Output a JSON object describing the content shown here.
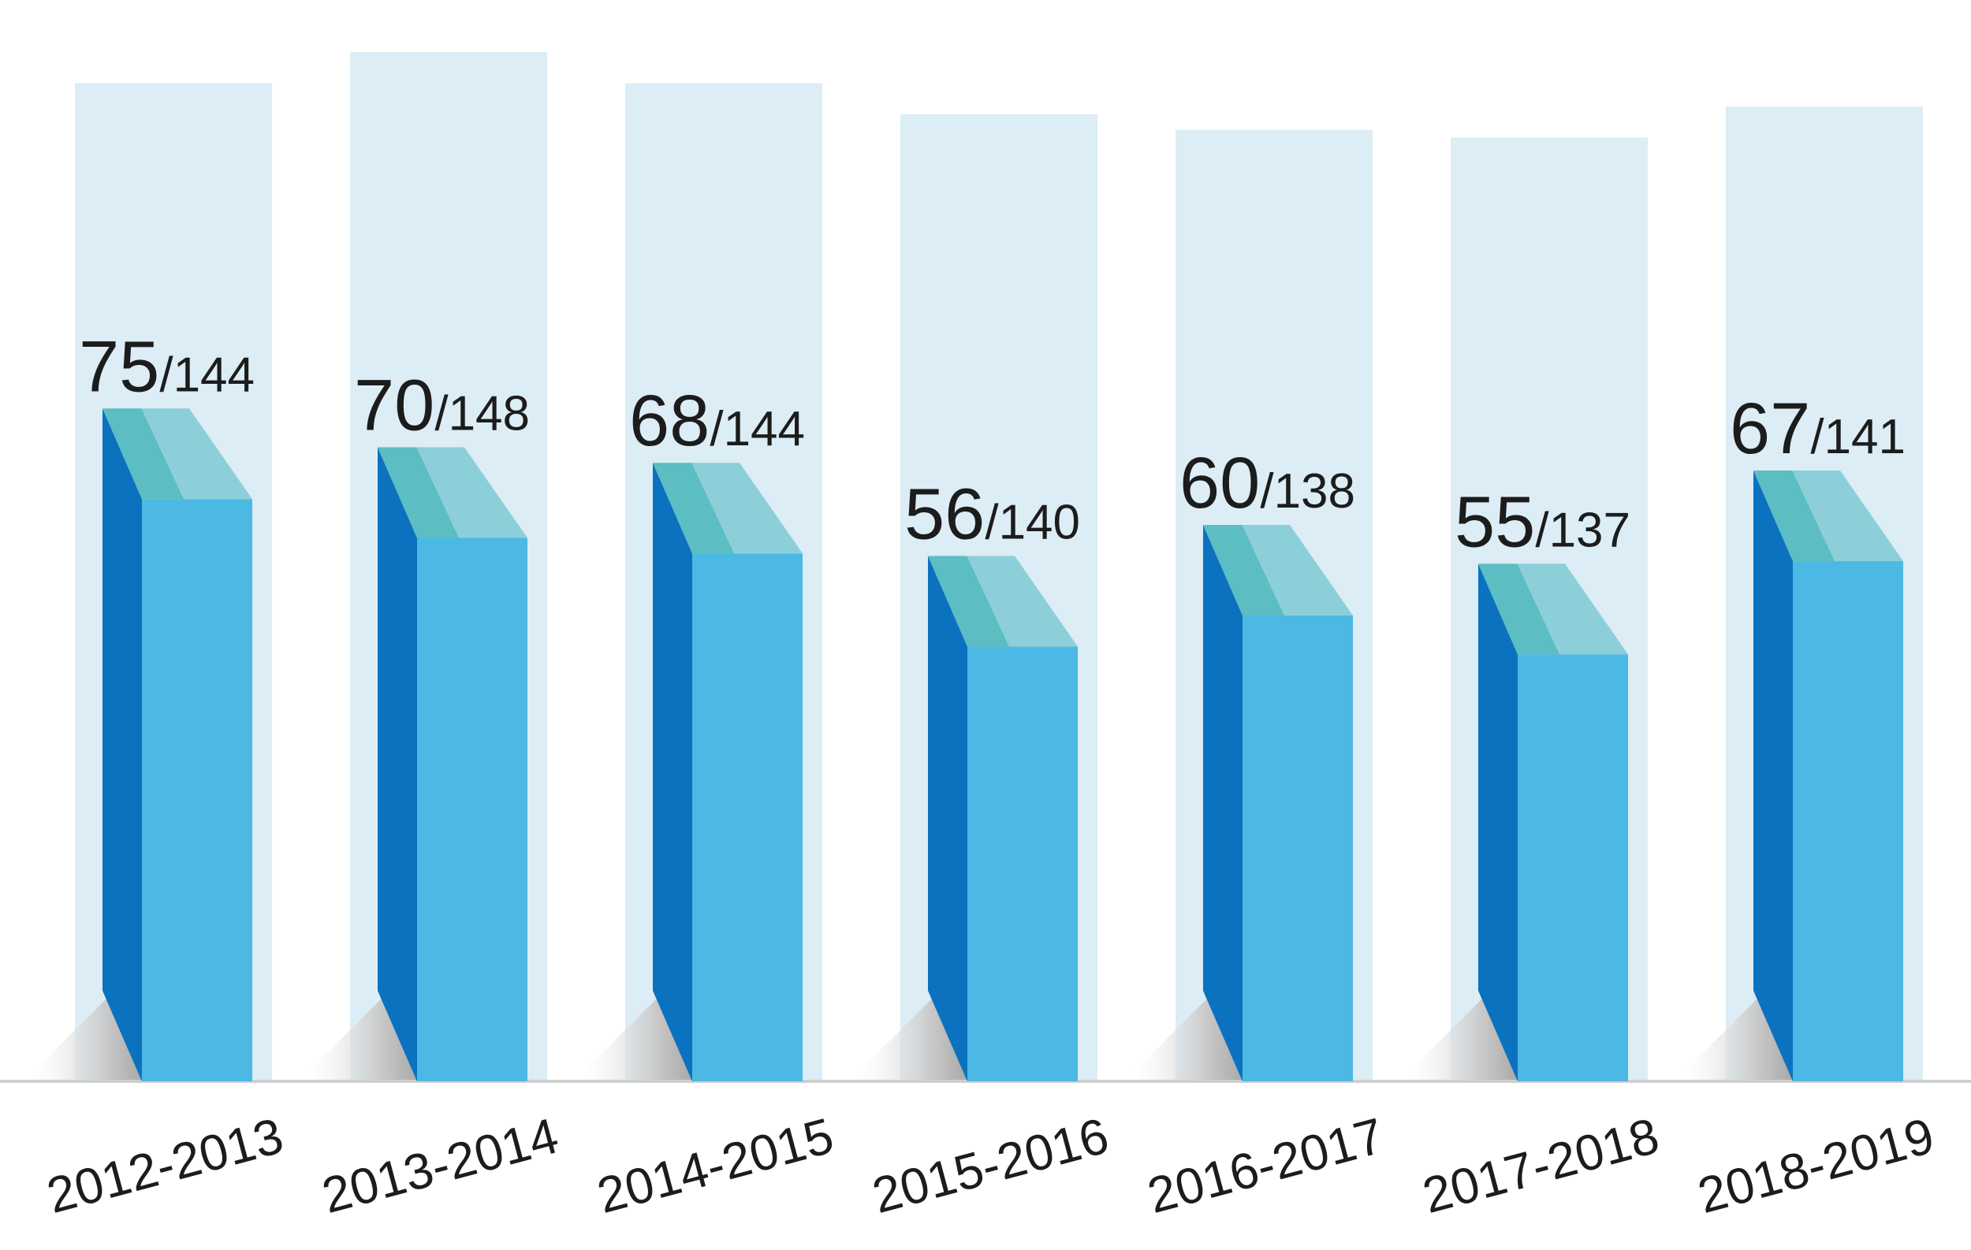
{
  "chart_data": {
    "type": "bar",
    "categories": [
      "2012-2013",
      "2013-2014",
      "2014-2015",
      "2015-2016",
      "2016-2017",
      "2017-2018",
      "2018-2019"
    ],
    "series": [
      {
        "values": [
          75,
          70,
          68,
          56,
          60,
          55,
          67
        ]
      },
      {
        "values": [
          144,
          148,
          144,
          140,
          138,
          137,
          141
        ]
      }
    ],
    "data_labels": [
      {
        "value": "75",
        "total": "/144"
      },
      {
        "value": "70",
        "total": "/148"
      },
      {
        "value": "68",
        "total": "/144"
      },
      {
        "value": "56",
        "total": "/140"
      },
      {
        "value": "60",
        "total": "/138"
      },
      {
        "value": "55",
        "total": "/137"
      },
      {
        "value": "67",
        "total": "/141"
      }
    ],
    "colors": {
      "background_bar": "#dcedf6",
      "bar_front": "#4cb8e4",
      "bar_side": "#0b72c0",
      "bar_top_left": "#5cbdc2",
      "bar_top_right": "#8ccfd9",
      "shadow": "#b9b9b9",
      "baseline": "#cfcfcf"
    },
    "grid": false,
    "legend": "none",
    "style": "3d-columns"
  }
}
